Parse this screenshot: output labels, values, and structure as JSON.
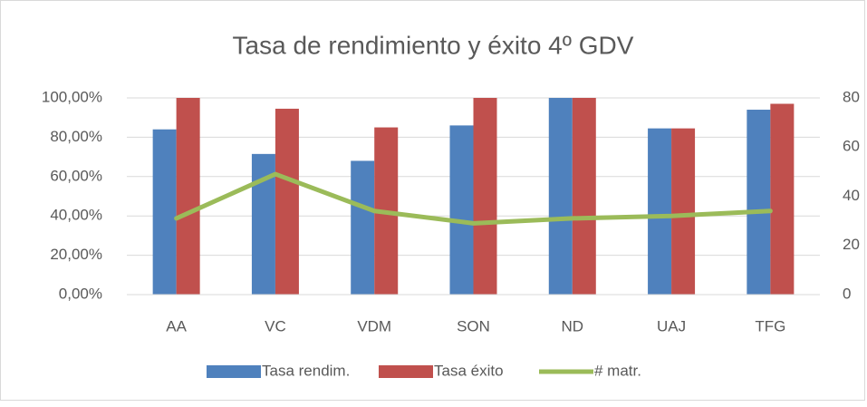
{
  "chart_data": {
    "type": "bar",
    "title": "Tasa de rendimiento y éxito 4º GDV",
    "categories": [
      "AA",
      "VC",
      "VDM",
      "SON",
      "ND",
      "UAJ",
      "TFG"
    ],
    "series": [
      {
        "name": "Tasa rendim.",
        "type": "bar",
        "color": "#4f81bd",
        "values": [
          84,
          71.5,
          68,
          86,
          100,
          84.5,
          94
        ]
      },
      {
        "name": "Tasa éxito",
        "type": "bar",
        "color": "#c0504d",
        "values": [
          100,
          94.5,
          85,
          100,
          100,
          84.5,
          97
        ]
      },
      {
        "name": "# matr.",
        "type": "line",
        "axis": "y2",
        "color": "#9bbb59",
        "values": [
          31,
          49,
          34,
          29,
          31,
          32,
          34
        ]
      }
    ],
    "ylim": [
      0,
      100
    ],
    "yticks": [
      {
        "value": 0,
        "label": "0,00%"
      },
      {
        "value": 20,
        "label": "20,00%"
      },
      {
        "value": 40,
        "label": "40,00%"
      },
      {
        "value": 60,
        "label": "60,00%"
      },
      {
        "value": 80,
        "label": "80,00%"
      },
      {
        "value": 100,
        "label": "100,00%"
      }
    ],
    "y2lim": [
      0,
      80
    ],
    "y2ticks": [
      0,
      20,
      40,
      60,
      80
    ],
    "grid": true,
    "legend": "bottom"
  }
}
